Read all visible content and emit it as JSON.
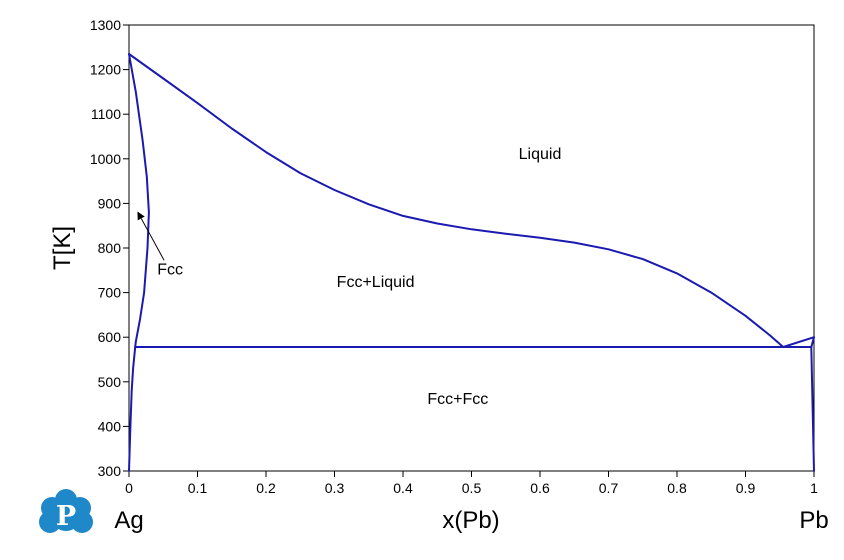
{
  "chart_data": {
    "type": "line",
    "title": "",
    "xlabel": "x(Pb)",
    "ylabel": "T[K]",
    "xlim": [
      0,
      1
    ],
    "ylim": [
      300,
      1300
    ],
    "xticks": [
      0,
      0.1,
      0.2,
      0.3,
      0.4,
      0.5,
      0.6,
      0.7,
      0.8,
      0.9,
      1
    ],
    "xtick_labels": [
      "0",
      "0.1",
      "0.2",
      "0.3",
      "0.4",
      "0.5",
      "0.6",
      "0.7",
      "0.8",
      "0.9",
      "1"
    ],
    "yticks": [
      300,
      400,
      500,
      600,
      700,
      800,
      900,
      1000,
      1100,
      1200,
      1300
    ],
    "ytick_labels": [
      "300",
      "400",
      "500",
      "600",
      "700",
      "800",
      "900",
      "1000",
      "1100",
      "1200",
      "1300"
    ],
    "grid": false,
    "line_color": "#1a1ab0",
    "series": [
      {
        "points": [
          [
            0,
            1235
          ],
          [
            0.05,
            1180
          ],
          [
            0.1,
            1125
          ],
          [
            0.15,
            1068
          ],
          [
            0.2,
            1015
          ],
          [
            0.25,
            968
          ],
          [
            0.3,
            930
          ],
          [
            0.35,
            898
          ],
          [
            0.4,
            872
          ],
          [
            0.45,
            855
          ],
          [
            0.5,
            842
          ],
          [
            0.55,
            832
          ],
          [
            0.6,
            823
          ],
          [
            0.65,
            812
          ],
          [
            0.7,
            797
          ],
          [
            0.75,
            775
          ],
          [
            0.8,
            743
          ],
          [
            0.85,
            700
          ],
          [
            0.9,
            648
          ],
          [
            0.935,
            605
          ],
          [
            0.955,
            578
          ]
        ]
      },
      {
        "points": [
          [
            0,
            1235
          ],
          [
            0.01,
            1150
          ],
          [
            0.02,
            1040
          ],
          [
            0.026,
            960
          ],
          [
            0.029,
            880
          ],
          [
            0.027,
            800
          ],
          [
            0.022,
            700
          ],
          [
            0.016,
            640
          ],
          [
            0.01,
            590
          ],
          [
            0.009,
            578
          ]
        ]
      },
      {
        "points": [
          [
            0,
            300
          ],
          [
            0.002,
            400
          ],
          [
            0.004,
            480
          ],
          [
            0.006,
            530
          ],
          [
            0.009,
            578
          ]
        ]
      },
      {
        "points": [
          [
            0.009,
            578
          ],
          [
            0.996,
            578
          ]
        ]
      },
      {
        "points": [
          [
            0.955,
            578
          ],
          [
            1,
            600
          ]
        ]
      },
      {
        "points": [
          [
            0.996,
            578
          ],
          [
            1,
            300
          ]
        ]
      },
      {
        "points": [
          [
            0.996,
            578
          ],
          [
            1,
            600
          ]
        ]
      }
    ],
    "annotations": [
      {
        "text": "Liquid",
        "x": 0.6,
        "y": 1000
      },
      {
        "text": "Fcc+Liquid",
        "x": 0.36,
        "y": 712
      },
      {
        "text": "Fcc+Fcc",
        "x": 0.48,
        "y": 450
      },
      {
        "text": "Fcc",
        "x": 0.06,
        "y": 741,
        "arrow_to": [
          0.013,
          880
        ]
      }
    ],
    "endpoint_labels": {
      "left": "Ag",
      "right": "Pb"
    }
  },
  "logo": {
    "letter": "P",
    "color": "#1e88c8"
  }
}
